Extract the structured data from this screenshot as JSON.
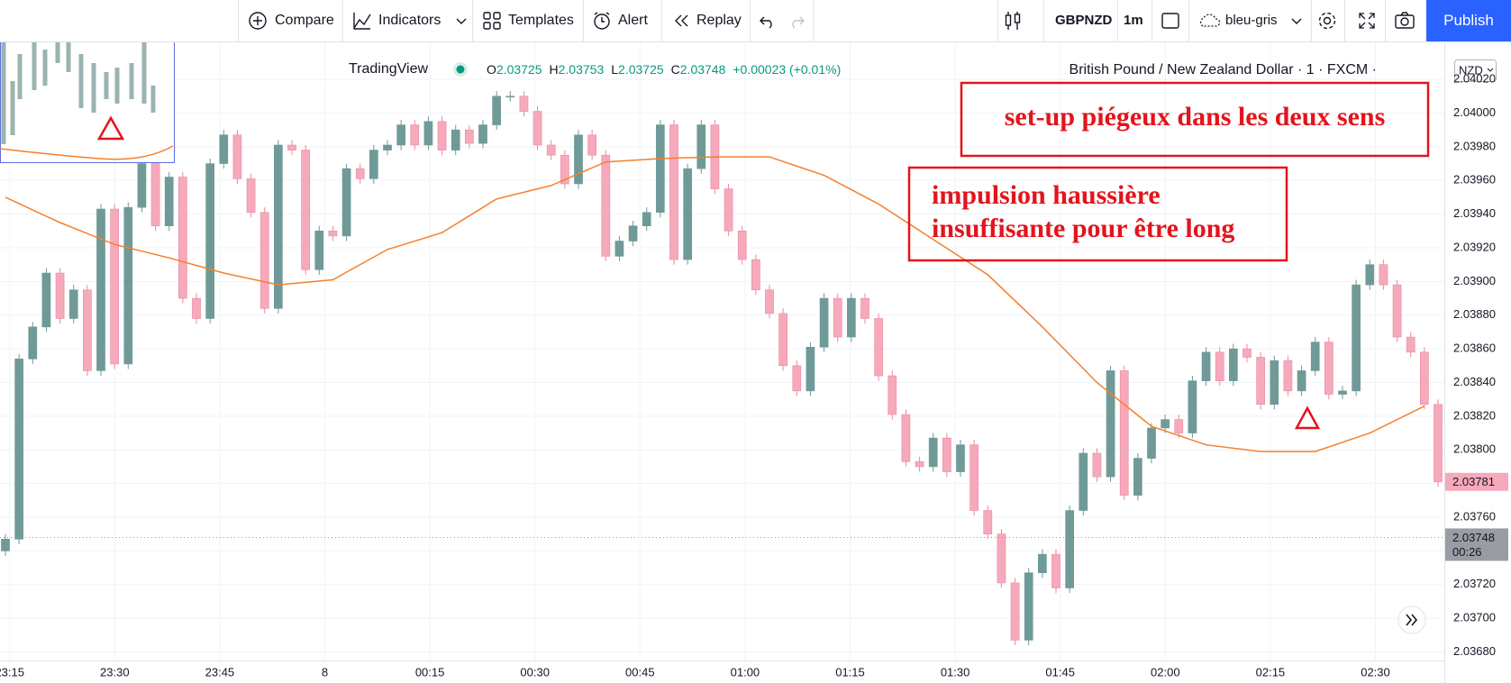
{
  "toolbar": {
    "compare": "Compare",
    "indicators": "Indicators",
    "templates": "Templates",
    "alert": "Alert",
    "replay": "Replay",
    "symbol": "GBPNZD",
    "interval": "1m",
    "layout": "bleu-gris",
    "publish": "Publish"
  },
  "chart_data": {
    "type": "candlestick",
    "title": "British Pound / New Zealand Dollar · 1 · FXCM ·",
    "source": "TradingView",
    "legend": [
      {
        "label": "O",
        "value": 2.03725
      },
      {
        "label": "H",
        "value": 2.03753
      },
      {
        "label": "L",
        "value": 2.03725
      },
      {
        "label": "C",
        "value": 2.03748
      }
    ],
    "change": "+0.00023 (+0.01%)",
    "currency": "NZD",
    "xticks": [
      "23:15",
      "23:30",
      "23:45",
      "8",
      "00:15",
      "00:30",
      "00:45",
      "01:00",
      "01:15",
      "01:30",
      "01:45",
      "02:00",
      "02:15",
      "02:30"
    ],
    "open": [
      2.0374,
      2.03747,
      2.03854,
      2.03873,
      2.03905,
      2.03878,
      2.03895,
      2.03847,
      2.03943,
      2.03851,
      2.03944,
      2.0397,
      2.03933,
      2.03962,
      2.0389,
      2.03878,
      2.0397,
      2.03987,
      2.03961,
      2.03941,
      2.03884,
      2.03981,
      2.03978,
      2.03907,
      2.0393,
      2.03927,
      2.03967,
      2.03961,
      2.03978,
      2.03981,
      2.03993,
      2.03981,
      2.03995,
      2.03978,
      2.0399,
      2.03982,
      2.03993,
      2.0401,
      2.0401,
      2.04001,
      2.03981,
      2.03975,
      2.03958,
      2.03987,
      2.03975,
      2.03915,
      2.03924,
      2.03933,
      2.03941,
      2.03993,
      2.03913,
      2.03967,
      2.03993,
      2.03955,
      2.0393,
      2.03913,
      2.03895,
      2.03881,
      2.0385,
      2.03835,
      2.03861,
      2.0389,
      2.03867,
      2.0389,
      2.03878,
      2.03844,
      2.03821,
      2.03793,
      2.0379,
      2.03807,
      2.03787,
      2.03803,
      2.03764,
      2.0375,
      2.03721,
      2.03687,
      2.03727,
      2.03738,
      2.03718,
      2.03764,
      2.03798,
      2.03784,
      2.03847,
      2.03773,
      2.03795,
      2.03813,
      2.03818,
      2.0381,
      2.03841,
      2.03858,
      2.03841,
      2.0386,
      2.03855,
      2.03827,
      2.03853,
      2.03835,
      2.03847,
      2.03864,
      2.03833,
      2.03835,
      2.03898,
      2.0391,
      2.03898,
      2.03867,
      2.03858,
      2.03827
    ],
    "high": [
      2.0375,
      2.03857,
      2.03876,
      2.03908,
      2.03908,
      2.03898,
      2.03898,
      2.03946,
      2.03946,
      2.03947,
      2.03973,
      2.03973,
      2.03965,
      2.03965,
      2.03893,
      2.03973,
      2.0399,
      2.0399,
      2.03964,
      2.03944,
      2.03984,
      2.03984,
      2.03981,
      2.03933,
      2.03933,
      2.0397,
      2.0397,
      2.03981,
      2.03984,
      2.03996,
      2.03996,
      2.03998,
      2.03998,
      2.03993,
      2.03993,
      2.03996,
      2.04013,
      2.04013,
      2.04013,
      2.04004,
      2.03984,
      2.03978,
      2.0399,
      2.0399,
      2.03978,
      2.03927,
      2.03936,
      2.03944,
      2.03996,
      2.03996,
      2.0397,
      2.03996,
      2.03996,
      2.03958,
      2.03933,
      2.03916,
      2.03898,
      2.03884,
      2.03853,
      2.03864,
      2.03893,
      2.03893,
      2.03893,
      2.03893,
      2.03881,
      2.03847,
      2.03824,
      2.03796,
      2.0381,
      2.0381,
      2.03806,
      2.03806,
      2.03767,
      2.03753,
      2.03724,
      2.0373,
      2.03741,
      2.03741,
      2.03767,
      2.03801,
      2.03801,
      2.0385,
      2.0385,
      2.03798,
      2.03816,
      2.03821,
      2.03821,
      2.03844,
      2.03861,
      2.03861,
      2.03863,
      2.03863,
      2.03858,
      2.03856,
      2.03856,
      2.0385,
      2.03867,
      2.03867,
      2.03838,
      2.03901,
      2.03913,
      2.03913,
      2.03901,
      2.0387,
      2.03861,
      2.0383
    ],
    "low": [
      2.03737,
      2.03744,
      2.03851,
      2.0387,
      2.03875,
      2.03875,
      2.03844,
      2.03844,
      2.03848,
      2.03848,
      2.03941,
      2.0393,
      2.0393,
      2.03887,
      2.03875,
      2.03875,
      2.03967,
      2.03958,
      2.03938,
      2.03881,
      2.03881,
      2.03975,
      2.03904,
      2.03904,
      2.03924,
      2.03924,
      2.03958,
      2.03958,
      2.03975,
      2.03978,
      2.03978,
      2.03978,
      2.03975,
      2.03975,
      2.03979,
      2.03979,
      2.0399,
      2.04007,
      2.03998,
      2.03978,
      2.03972,
      2.03955,
      2.03955,
      2.03972,
      2.03912,
      2.03912,
      2.03921,
      2.0393,
      2.03938,
      2.0391,
      2.0391,
      2.03964,
      2.03952,
      2.03927,
      2.0391,
      2.03892,
      2.03878,
      2.03847,
      2.03832,
      2.03832,
      2.03858,
      2.03864,
      2.03864,
      2.03875,
      2.03841,
      2.03818,
      2.0379,
      2.03787,
      2.03787,
      2.03784,
      2.03784,
      2.03761,
      2.03747,
      2.03718,
      2.03684,
      2.03684,
      2.03724,
      2.03715,
      2.03715,
      2.03761,
      2.03781,
      2.03781,
      2.0377,
      2.0377,
      2.03792,
      2.0381,
      2.03807,
      2.03807,
      2.03838,
      2.03838,
      2.03838,
      2.03852,
      2.03824,
      2.03824,
      2.03832,
      2.03832,
      2.03844,
      2.0383,
      2.0383,
      2.03832,
      2.03895,
      2.03895,
      2.03864,
      2.03855,
      2.03824,
      2.03778
    ],
    "close": [
      2.03747,
      2.03854,
      2.03873,
      2.03905,
      2.03878,
      2.03895,
      2.03847,
      2.03943,
      2.03851,
      2.03944,
      2.0397,
      2.03933,
      2.03962,
      2.0389,
      2.03878,
      2.0397,
      2.03987,
      2.03961,
      2.03941,
      2.03884,
      2.03981,
      2.03978,
      2.03907,
      2.0393,
      2.03927,
      2.03967,
      2.03961,
      2.03978,
      2.03981,
      2.03993,
      2.03981,
      2.03995,
      2.03978,
      2.0399,
      2.03982,
      2.03993,
      2.0401,
      2.0401,
      2.04001,
      2.03981,
      2.03975,
      2.03958,
      2.03987,
      2.03975,
      2.03915,
      2.03924,
      2.03933,
      2.03941,
      2.03993,
      2.03913,
      2.03967,
      2.03993,
      2.03955,
      2.0393,
      2.03913,
      2.03895,
      2.03881,
      2.0385,
      2.03835,
      2.03861,
      2.0389,
      2.03867,
      2.0389,
      2.03878,
      2.03844,
      2.03821,
      2.03793,
      2.0379,
      2.03807,
      2.03787,
      2.03803,
      2.03764,
      2.0375,
      2.03721,
      2.03687,
      2.03727,
      2.03738,
      2.03718,
      2.03764,
      2.03798,
      2.03784,
      2.03847,
      2.03773,
      2.03795,
      2.03813,
      2.03818,
      2.0381,
      2.03841,
      2.03858,
      2.03841,
      2.0386,
      2.03855,
      2.03827,
      2.03853,
      2.03835,
      2.03847,
      2.03864,
      2.03833,
      2.03835,
      2.03898,
      2.0391,
      2.03898,
      2.03867,
      2.03858,
      2.03827,
      2.03781
    ],
    "up_color": "#6f9a97",
    "down_color": "#f7a9bc",
    "ma": {
      "color": "#f57f2a",
      "values": [
        2.0395,
        2.03935,
        2.03922,
        2.03914,
        2.03905,
        2.03898,
        2.03901,
        2.03919,
        2.03929,
        2.03949,
        2.03957,
        2.03971,
        2.03973,
        2.03974,
        2.03974,
        2.03963,
        2.03946,
        2.03925,
        2.03904,
        2.03873,
        2.0384,
        2.03814,
        2.03803,
        2.03799,
        2.03799,
        2.0381,
        2.03826
      ]
    },
    "ylim": [
      2.03676,
      2.04042
    ],
    "yticks": [
      {
        "value": 2.0368,
        "label": "2.03680"
      },
      {
        "value": 2.037,
        "label": "2.03700"
      },
      {
        "value": 2.0372,
        "label": "2.03720"
      },
      {
        "value": 2.0374,
        "label": "2.03740"
      },
      {
        "value": 2.0376,
        "label": "2.03760"
      },
      {
        "value": 2.0378,
        "label": "2.03780"
      },
      {
        "value": 2.038,
        "label": "2.03800"
      },
      {
        "value": 2.0382,
        "label": "2.03820"
      },
      {
        "value": 2.0384,
        "label": "2.03840"
      },
      {
        "value": 2.0386,
        "label": "2.03860"
      },
      {
        "value": 2.0388,
        "label": "2.03880"
      },
      {
        "value": 2.039,
        "label": "2.03900"
      },
      {
        "value": 2.0392,
        "label": "2.03920"
      },
      {
        "value": 2.0394,
        "label": "2.03940"
      },
      {
        "value": 2.0396,
        "label": "2.03960"
      },
      {
        "value": 2.0398,
        "label": "2.03980"
      },
      {
        "value": 2.04,
        "label": "2.04000"
      },
      {
        "value": 2.0402,
        "label": "2.04020"
      }
    ],
    "grid": true,
    "last_price": 2.03781,
    "price": 2.03748,
    "countdown": "00:26",
    "annotations": [
      {
        "text": [
          "set-up piégeux dans les deux sens"
        ]
      },
      {
        "text": [
          "impulsion haussière",
          "insuffisante pour être long"
        ]
      }
    ]
  }
}
